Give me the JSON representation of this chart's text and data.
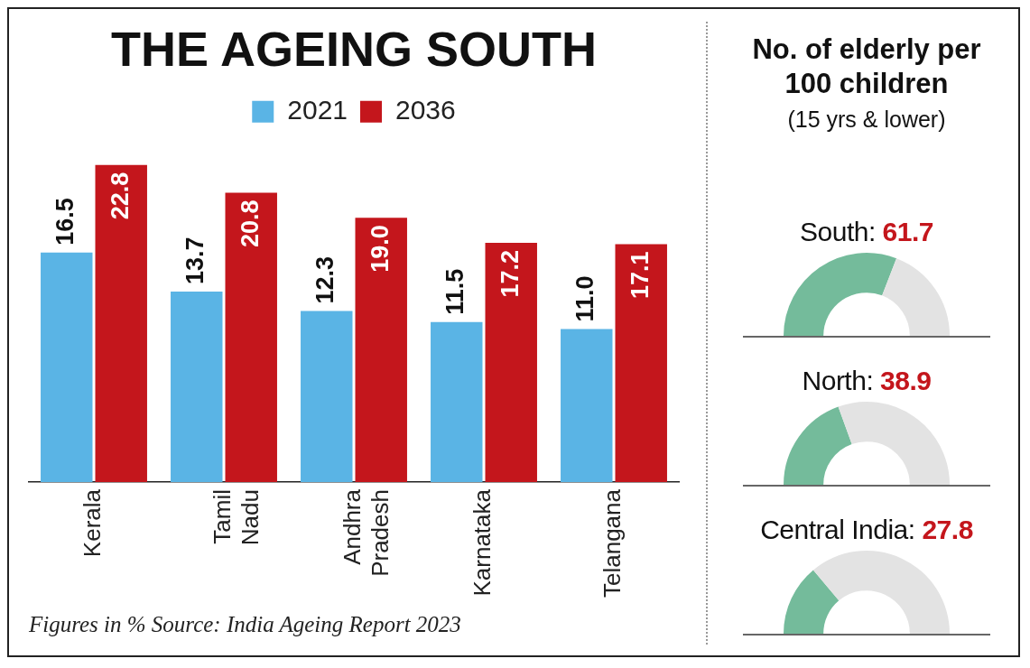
{
  "chart_data": [
    {
      "type": "bar",
      "title": "THE AGEING SOUTH",
      "categories": [
        "Kerala",
        "Tamil Nadu",
        "Andhra Pradesh",
        "Karnataka",
        "Telangana"
      ],
      "series": [
        {
          "name": "2021",
          "color": "#5ab4e5",
          "values": [
            16.5,
            13.7,
            12.3,
            11.5,
            11.0
          ],
          "value_labels": [
            "16.5",
            "13.7",
            "12.3",
            "11.5",
            "11.0"
          ]
        },
        {
          "name": "2036",
          "color": "#c4161c",
          "values": [
            22.8,
            20.8,
            19.0,
            17.2,
            17.1
          ],
          "value_labels": [
            "22.8",
            "20.8",
            "19.0",
            "17.2",
            "17.1"
          ]
        }
      ],
      "legend": "top",
      "grid": false,
      "annotations": [
        "Figures in %  Source: India Ageing Report 2023"
      ]
    },
    {
      "type": "other",
      "title": "No. of elderly per 100 children",
      "subtitle": "(15 yrs & lower)"
    },
    {
      "type": "donut",
      "title": "South:",
      "categories": [
        null,
        null
      ],
      "values": [
        61.7,
        38.3
      ],
      "colors": [
        "#74bb9b",
        "#e3e3e3"
      ],
      "annotations": [
        "61.7"
      ]
    },
    {
      "type": "donut",
      "title": "North:",
      "categories": [
        null,
        null
      ],
      "values": [
        38.9,
        61.1
      ],
      "colors": [
        "#74bb9b",
        "#e3e3e3"
      ],
      "annotations": [
        "38.9"
      ]
    },
    {
      "type": "donut",
      "title": "Central India:",
      "categories": [
        null,
        null
      ],
      "values": [
        27.8,
        72.2
      ],
      "colors": [
        "#74bb9b",
        "#e3e3e3"
      ],
      "annotations": [
        "27.8"
      ]
    }
  ]
}
